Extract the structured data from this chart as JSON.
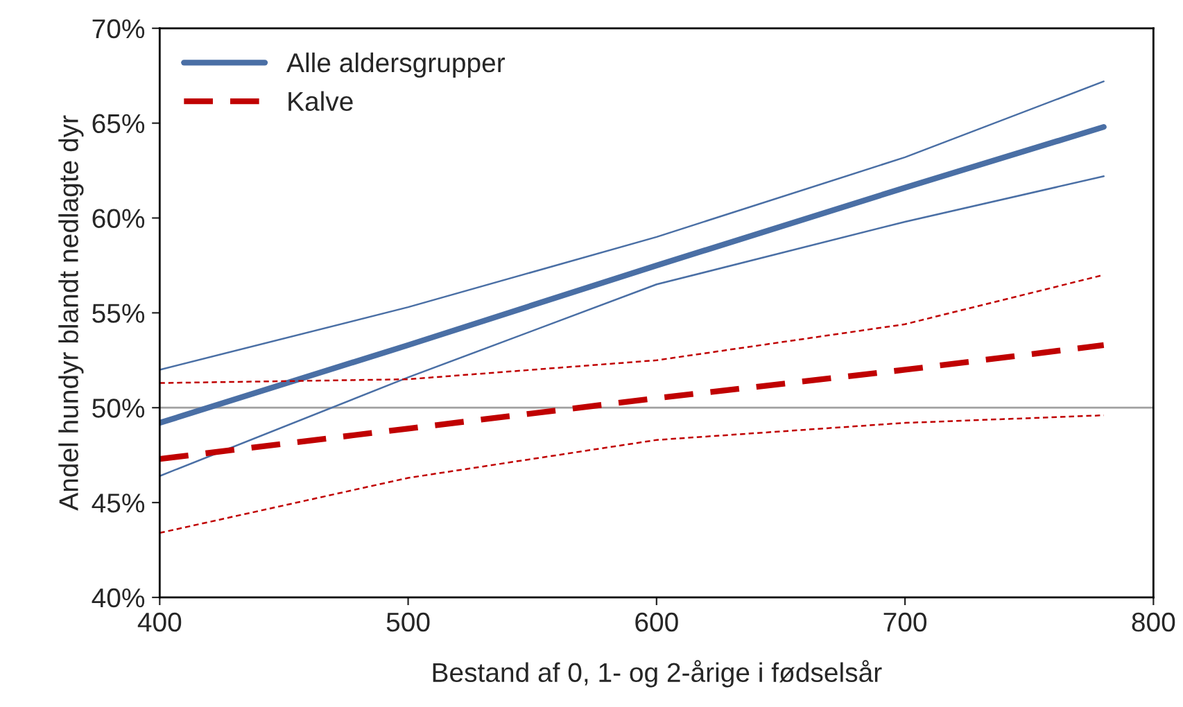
{
  "chart_data": {
    "type": "line",
    "xlabel": "Bestand af 0, 1- og 2-årige i fødselsår",
    "ylabel": "Andel hundyr blandt nedlagte dyr",
    "x": [
      400,
      500,
      600,
      700,
      780
    ],
    "series": [
      {
        "name": "Alle aldersgrupper",
        "color": "#4a6fa5",
        "line_style": "solid",
        "values": [
          49.2,
          53.3,
          57.5,
          61.6,
          64.8
        ]
      },
      {
        "color": "#4a6fa5",
        "line_style": "solid",
        "values": [
          46.4,
          51.6,
          56.5,
          59.8,
          62.2
        ]
      },
      {
        "color": "#4a6fa5",
        "line_style": "solid",
        "values": [
          52.0,
          55.3,
          59.0,
          63.2,
          67.2
        ]
      },
      {
        "name": "Kalve",
        "color": "#c00000",
        "line_style": "dashed",
        "values": [
          47.3,
          48.9,
          50.5,
          52.0,
          53.3
        ]
      },
      {
        "color": "#c00000",
        "line_style": "dotted",
        "values": [
          43.4,
          46.3,
          48.3,
          49.2,
          49.6
        ]
      },
      {
        "color": "#c00000",
        "line_style": "dotted",
        "values": [
          51.3,
          51.5,
          52.5,
          54.4,
          57.0
        ]
      }
    ],
    "xlim": [
      400,
      800
    ],
    "xticks": [
      400,
      500,
      600,
      700,
      800
    ],
    "ylim": [
      40,
      70
    ],
    "yticks": [
      {
        "value": 40,
        "label": "40%"
      },
      {
        "value": 45,
        "label": "45%"
      },
      {
        "value": 50,
        "label": "50%"
      },
      {
        "value": 55,
        "label": "55%"
      },
      {
        "value": 60,
        "label": "60%"
      },
      {
        "value": 65,
        "label": "65%"
      },
      {
        "value": 70,
        "label": "70%"
      }
    ],
    "ref_lines": [
      {
        "axis": "y",
        "value": 50,
        "color": "#a0a0a0"
      }
    ],
    "grid": false,
    "legend": "top left"
  }
}
